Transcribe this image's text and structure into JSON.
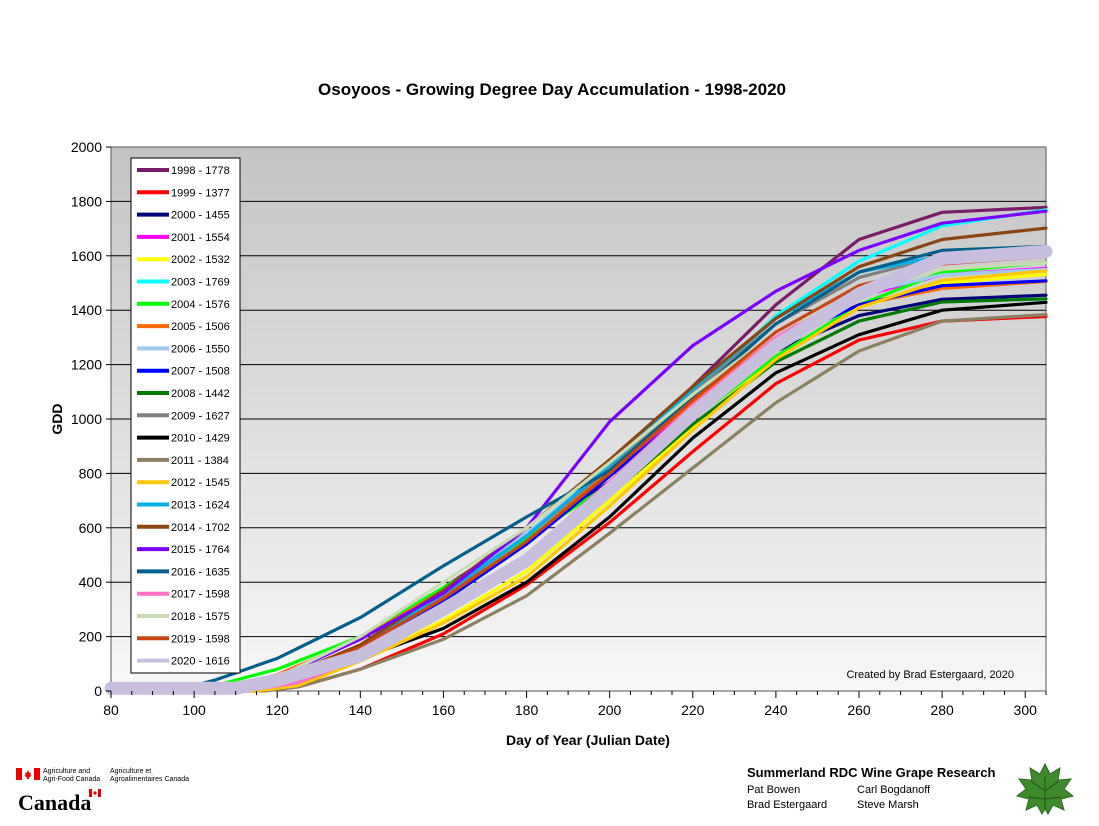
{
  "chart_data": {
    "type": "line",
    "title": "Osoyoos - Growing Degree Day Accumulation - 1998-2020",
    "xlabel": "Day of Year (Julian Date)",
    "ylabel": "GDD",
    "xlim": [
      80,
      305
    ],
    "ylim": [
      0,
      2000
    ],
    "xticks": [
      "80",
      "100",
      "120",
      "140",
      "160",
      "180",
      "200",
      "220",
      "240",
      "260",
      "280",
      "300"
    ],
    "yticks": [
      "0",
      "200",
      "400",
      "600",
      "800",
      "1000",
      "1200",
      "1400",
      "1600",
      "1800",
      "2000"
    ],
    "grid": true,
    "legend_position": "top-left",
    "annotation": "Created by Brad Estergaard, 2020",
    "series": [
      {
        "name": "1998 - 1778",
        "color": "#7a1b6a",
        "points": [
          [
            80,
            0
          ],
          [
            112,
            0
          ],
          [
            120,
            20
          ],
          [
            140,
            150
          ],
          [
            160,
            380
          ],
          [
            180,
            580
          ],
          [
            200,
            820
          ],
          [
            220,
            1120
          ],
          [
            240,
            1420
          ],
          [
            260,
            1660
          ],
          [
            280,
            1760
          ],
          [
            305,
            1778
          ]
        ]
      },
      {
        "name": "1999 - 1377",
        "color": "#ff0000",
        "points": [
          [
            80,
            0
          ],
          [
            115,
            0
          ],
          [
            125,
            15
          ],
          [
            140,
            80
          ],
          [
            160,
            210
          ],
          [
            180,
            390
          ],
          [
            200,
            620
          ],
          [
            220,
            880
          ],
          [
            240,
            1130
          ],
          [
            260,
            1290
          ],
          [
            280,
            1360
          ],
          [
            305,
            1377
          ]
        ]
      },
      {
        "name": "2000 - 1455",
        "color": "#00007a",
        "points": [
          [
            80,
            0
          ],
          [
            100,
            0
          ],
          [
            120,
            50
          ],
          [
            140,
            160
          ],
          [
            160,
            350
          ],
          [
            180,
            560
          ],
          [
            200,
            770
          ],
          [
            220,
            1030
          ],
          [
            240,
            1250
          ],
          [
            260,
            1380
          ],
          [
            280,
            1440
          ],
          [
            305,
            1455
          ]
        ]
      },
      {
        "name": "2001 - 1554",
        "color": "#ff00ff",
        "points": [
          [
            80,
            0
          ],
          [
            110,
            0
          ],
          [
            120,
            30
          ],
          [
            140,
            140
          ],
          [
            160,
            330
          ],
          [
            180,
            540
          ],
          [
            200,
            790
          ],
          [
            220,
            1050
          ],
          [
            240,
            1290
          ],
          [
            260,
            1450
          ],
          [
            280,
            1530
          ],
          [
            305,
            1554
          ]
        ]
      },
      {
        "name": "2002 - 1532",
        "color": "#ffff00",
        "points": [
          [
            80,
            0
          ],
          [
            112,
            0
          ],
          [
            125,
            30
          ],
          [
            140,
            110
          ],
          [
            160,
            260
          ],
          [
            180,
            440
          ],
          [
            200,
            700
          ],
          [
            220,
            970
          ],
          [
            240,
            1230
          ],
          [
            260,
            1410
          ],
          [
            280,
            1500
          ],
          [
            305,
            1532
          ]
        ]
      },
      {
        "name": "2003 - 1769",
        "color": "#00ffff",
        "points": [
          [
            80,
            0
          ],
          [
            108,
            0
          ],
          [
            120,
            40
          ],
          [
            140,
            160
          ],
          [
            160,
            350
          ],
          [
            180,
            560
          ],
          [
            200,
            810
          ],
          [
            220,
            1090
          ],
          [
            240,
            1380
          ],
          [
            260,
            1580
          ],
          [
            280,
            1710
          ],
          [
            305,
            1769
          ]
        ]
      },
      {
        "name": "2004 - 1576",
        "color": "#00ff00",
        "points": [
          [
            80,
            0
          ],
          [
            100,
            0
          ],
          [
            120,
            80
          ],
          [
            140,
            200
          ],
          [
            160,
            380
          ],
          [
            180,
            560
          ],
          [
            200,
            760
          ],
          [
            220,
            1000
          ],
          [
            240,
            1230
          ],
          [
            260,
            1420
          ],
          [
            280,
            1540
          ],
          [
            305,
            1576
          ]
        ]
      },
      {
        "name": "2005 - 1506",
        "color": "#ff6a00",
        "points": [
          [
            80,
            0
          ],
          [
            105,
            0
          ],
          [
            120,
            60
          ],
          [
            140,
            190
          ],
          [
            160,
            370
          ],
          [
            180,
            570
          ],
          [
            200,
            810
          ],
          [
            220,
            1060
          ],
          [
            240,
            1300
          ],
          [
            260,
            1420
          ],
          [
            280,
            1480
          ],
          [
            305,
            1506
          ]
        ]
      },
      {
        "name": "2006 - 1550",
        "color": "#9fc9f0",
        "points": [
          [
            80,
            0
          ],
          [
            110,
            0
          ],
          [
            120,
            40
          ],
          [
            140,
            160
          ],
          [
            160,
            360
          ],
          [
            180,
            580
          ],
          [
            200,
            830
          ],
          [
            220,
            1080
          ],
          [
            240,
            1320
          ],
          [
            260,
            1460
          ],
          [
            280,
            1530
          ],
          [
            305,
            1550
          ]
        ]
      },
      {
        "name": "2007 - 1508",
        "color": "#0000ff",
        "points": [
          [
            80,
            0
          ],
          [
            108,
            0
          ],
          [
            120,
            40
          ],
          [
            140,
            150
          ],
          [
            160,
            330
          ],
          [
            180,
            540
          ],
          [
            200,
            790
          ],
          [
            220,
            1040
          ],
          [
            240,
            1280
          ],
          [
            260,
            1420
          ],
          [
            280,
            1490
          ],
          [
            305,
            1508
          ]
        ]
      },
      {
        "name": "2008 - 1442",
        "color": "#007a00",
        "points": [
          [
            80,
            0
          ],
          [
            112,
            0
          ],
          [
            125,
            30
          ],
          [
            140,
            120
          ],
          [
            160,
            290
          ],
          [
            180,
            480
          ],
          [
            200,
            720
          ],
          [
            220,
            980
          ],
          [
            240,
            1210
          ],
          [
            260,
            1360
          ],
          [
            280,
            1430
          ],
          [
            305,
            1442
          ]
        ]
      },
      {
        "name": "2009 - 1627",
        "color": "#808080",
        "points": [
          [
            80,
            0
          ],
          [
            110,
            0
          ],
          [
            120,
            40
          ],
          [
            140,
            160
          ],
          [
            160,
            350
          ],
          [
            180,
            570
          ],
          [
            200,
            820
          ],
          [
            220,
            1100
          ],
          [
            240,
            1350
          ],
          [
            260,
            1520
          ],
          [
            280,
            1600
          ],
          [
            305,
            1627
          ]
        ]
      },
      {
        "name": "2010 - 1429",
        "color": "#000000",
        "points": [
          [
            80,
            0
          ],
          [
            112,
            0
          ],
          [
            125,
            30
          ],
          [
            140,
            120
          ],
          [
            160,
            230
          ],
          [
            180,
            400
          ],
          [
            200,
            640
          ],
          [
            220,
            930
          ],
          [
            240,
            1170
          ],
          [
            260,
            1310
          ],
          [
            280,
            1400
          ],
          [
            305,
            1429
          ]
        ]
      },
      {
        "name": "2011 - 1384",
        "color": "#8b8060",
        "points": [
          [
            80,
            0
          ],
          [
            117,
            0
          ],
          [
            125,
            15
          ],
          [
            140,
            80
          ],
          [
            160,
            190
          ],
          [
            180,
            350
          ],
          [
            200,
            580
          ],
          [
            220,
            820
          ],
          [
            240,
            1060
          ],
          [
            260,
            1250
          ],
          [
            280,
            1360
          ],
          [
            305,
            1384
          ]
        ]
      },
      {
        "name": "2012 - 1545",
        "color": "#ffc800",
        "points": [
          [
            80,
            0
          ],
          [
            115,
            0
          ],
          [
            125,
            20
          ],
          [
            140,
            110
          ],
          [
            160,
            250
          ],
          [
            180,
            420
          ],
          [
            200,
            680
          ],
          [
            220,
            960
          ],
          [
            240,
            1220
          ],
          [
            260,
            1410
          ],
          [
            280,
            1510
          ],
          [
            305,
            1545
          ]
        ]
      },
      {
        "name": "2013 - 1624",
        "color": "#00b0e6",
        "points": [
          [
            80,
            0
          ],
          [
            108,
            0
          ],
          [
            120,
            40
          ],
          [
            140,
            160
          ],
          [
            160,
            360
          ],
          [
            180,
            570
          ],
          [
            200,
            830
          ],
          [
            220,
            1110
          ],
          [
            240,
            1370
          ],
          [
            260,
            1540
          ],
          [
            280,
            1600
          ],
          [
            305,
            1624
          ]
        ]
      },
      {
        "name": "2014 - 1702",
        "color": "#8b4513",
        "points": [
          [
            80,
            0
          ],
          [
            110,
            0
          ],
          [
            120,
            40
          ],
          [
            140,
            170
          ],
          [
            160,
            370
          ],
          [
            180,
            600
          ],
          [
            200,
            850
          ],
          [
            220,
            1120
          ],
          [
            240,
            1370
          ],
          [
            260,
            1560
          ],
          [
            280,
            1660
          ],
          [
            305,
            1702
          ]
        ]
      },
      {
        "name": "2015 - 1764",
        "color": "#7b00ff",
        "points": [
          [
            80,
            0
          ],
          [
            105,
            0
          ],
          [
            120,
            50
          ],
          [
            140,
            190
          ],
          [
            160,
            360
          ],
          [
            180,
            600
          ],
          [
            200,
            990
          ],
          [
            220,
            1270
          ],
          [
            240,
            1470
          ],
          [
            260,
            1620
          ],
          [
            280,
            1720
          ],
          [
            305,
            1764
          ]
        ]
      },
      {
        "name": "2016 - 1635",
        "color": "#00608b",
        "points": [
          [
            80,
            0
          ],
          [
            95,
            0
          ],
          [
            105,
            40
          ],
          [
            120,
            120
          ],
          [
            140,
            270
          ],
          [
            160,
            460
          ],
          [
            180,
            640
          ],
          [
            200,
            810
          ],
          [
            220,
            1080
          ],
          [
            240,
            1350
          ],
          [
            260,
            1540
          ],
          [
            280,
            1620
          ],
          [
            305,
            1635
          ]
        ]
      },
      {
        "name": "2017 - 1598",
        "color": "#ff6ec7",
        "points": [
          [
            80,
            0
          ],
          [
            112,
            0
          ],
          [
            125,
            30
          ],
          [
            140,
            120
          ],
          [
            160,
            300
          ],
          [
            180,
            500
          ],
          [
            200,
            770
          ],
          [
            220,
            1050
          ],
          [
            240,
            1300
          ],
          [
            260,
            1480
          ],
          [
            280,
            1570
          ],
          [
            305,
            1598
          ]
        ]
      },
      {
        "name": "2018 - 1575",
        "color": "#c8dcb4",
        "points": [
          [
            80,
            0
          ],
          [
            108,
            0
          ],
          [
            120,
            50
          ],
          [
            140,
            200
          ],
          [
            160,
            400
          ],
          [
            180,
            600
          ],
          [
            200,
            840
          ],
          [
            220,
            1090
          ],
          [
            240,
            1320
          ],
          [
            260,
            1470
          ],
          [
            280,
            1550
          ],
          [
            305,
            1575
          ]
        ]
      },
      {
        "name": "2019 - 1598",
        "color": "#c84614",
        "points": [
          [
            80,
            0
          ],
          [
            110,
            0
          ],
          [
            120,
            40
          ],
          [
            140,
            160
          ],
          [
            160,
            340
          ],
          [
            180,
            550
          ],
          [
            200,
            800
          ],
          [
            220,
            1070
          ],
          [
            240,
            1320
          ],
          [
            260,
            1490
          ],
          [
            280,
            1570
          ],
          [
            305,
            1598
          ]
        ]
      },
      {
        "name": "2020 - 1616",
        "color": "#c8bede",
        "points": [
          [
            80,
            10
          ],
          [
            110,
            10
          ],
          [
            120,
            40
          ],
          [
            140,
            130
          ],
          [
            160,
            300
          ],
          [
            180,
            480
          ],
          [
            200,
            740
          ],
          [
            220,
            1020
          ],
          [
            240,
            1270
          ],
          [
            260,
            1460
          ],
          [
            280,
            1590
          ],
          [
            305,
            1616
          ]
        ]
      }
    ]
  },
  "footer": {
    "agency_en": [
      "Agriculture and",
      "Agri-Food Canada"
    ],
    "agency_fr": [
      "Agriculture et",
      "Agroalimentaires Canada"
    ],
    "wordmark": "Canada",
    "research_title": "Summerland RDC Wine Grape Research",
    "people": [
      "Pat Bowen",
      "Carl Bogdanoff",
      "Brad Estergaard",
      "Steve Marsh"
    ]
  }
}
